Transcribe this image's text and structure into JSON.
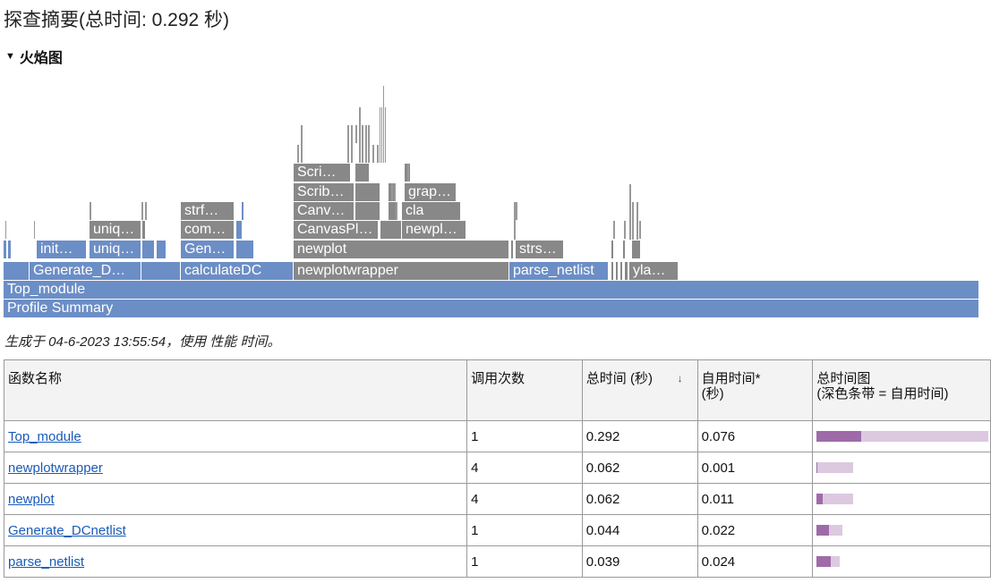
{
  "page": {
    "title": "探查摘要(总时间: 0.292 秒)",
    "flame_section_label": "火焰图",
    "generated_text": "生成于 04-6-2023 13:55:54，使用 性能 时间。"
  },
  "colors": {
    "blue_box": "#6c8ec6",
    "gray_box": "#888888",
    "link": "#1a5bb8",
    "bar_self": "#9e6ba8",
    "bar_total": "#dcc9e0"
  },
  "icons": {
    "collapse": "caret-down-icon",
    "sort": "sort-down-icon"
  },
  "flame": {
    "level0": [
      {
        "label": "Profile Summary",
        "color": "blue"
      }
    ],
    "level1": [
      {
        "label": "Top_module",
        "color": "blue"
      }
    ],
    "level2": [
      {
        "label": "Generate_D…",
        "color": "blue"
      },
      {
        "label": "calculateDC",
        "color": "blue"
      },
      {
        "label": "newplotwrapper",
        "color": "gray"
      },
      {
        "label": "parse_netlist",
        "color": "blue"
      },
      {
        "label": "yla…",
        "color": "gray"
      }
    ],
    "level3": [
      {
        "label": "init…",
        "color": "blue"
      },
      {
        "label": "uniq…",
        "color": "blue"
      },
      {
        "label": "Gen…",
        "color": "blue"
      },
      {
        "label": "newplot",
        "color": "gray"
      },
      {
        "label": "strs…",
        "color": "gray"
      }
    ],
    "level4": [
      {
        "label": "uniq…",
        "color": "gray"
      },
      {
        "label": "com…",
        "color": "gray"
      },
      {
        "label": "CanvasPl…",
        "color": "gray"
      },
      {
        "label": "newpl…",
        "color": "gray"
      }
    ],
    "level5": [
      {
        "label": "strf…",
        "color": "gray"
      },
      {
        "label": "Canv…",
        "color": "gray"
      },
      {
        "label": "cla",
        "color": "gray"
      }
    ],
    "level6": [
      {
        "label": "Scrib…",
        "color": "gray"
      },
      {
        "label": "grap…",
        "color": "gray"
      }
    ],
    "level7": [
      {
        "label": "Scri…",
        "color": "gray"
      }
    ]
  },
  "table": {
    "headers": {
      "function_name": "函数名称",
      "calls": "调用次数",
      "total_time": "总时间 (秒)",
      "self_time_l1": "自用时间*",
      "self_time_l2": "(秒)",
      "chart_l1": "总时间图",
      "chart_l2": "(深色条带 = 自用时间)"
    },
    "rows": [
      {
        "name": "Top_module",
        "calls": "1",
        "total": "0.292",
        "self": "0.076",
        "total_frac": 1.0,
        "self_frac": 0.26
      },
      {
        "name": "newplotwrapper",
        "calls": "4",
        "total": "0.062",
        "self": "0.001",
        "total_frac": 0.212,
        "self_frac": 0.003
      },
      {
        "name": "newplot",
        "calls": "4",
        "total": "0.062",
        "self": "0.011",
        "total_frac": 0.212,
        "self_frac": 0.038
      },
      {
        "name": "Generate_DCnetlist",
        "calls": "1",
        "total": "0.044",
        "self": "0.022",
        "total_frac": 0.151,
        "self_frac": 0.075
      },
      {
        "name": "parse_netlist",
        "calls": "1",
        "total": "0.039",
        "self": "0.024",
        "total_frac": 0.134,
        "self_frac": 0.082
      }
    ]
  }
}
